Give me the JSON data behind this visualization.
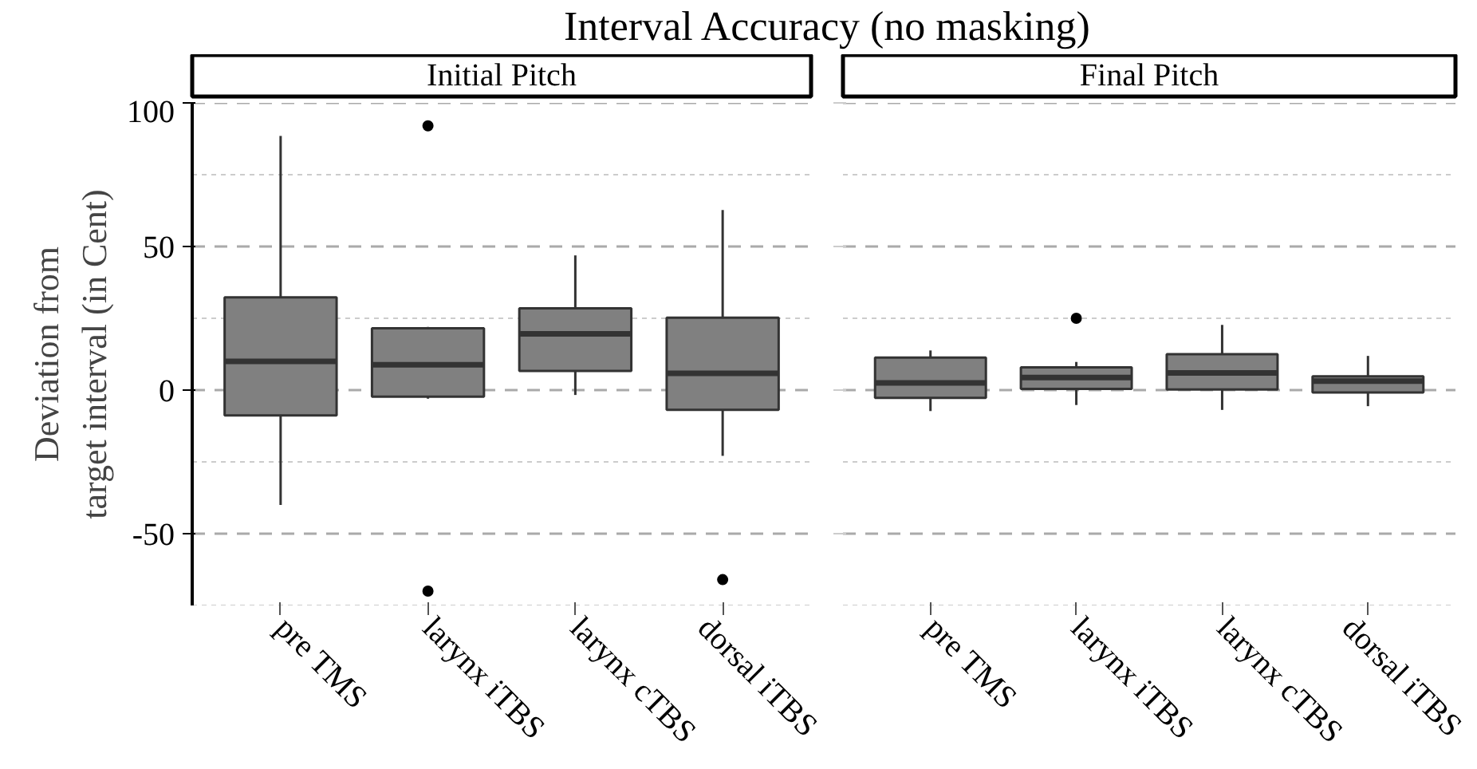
{
  "chart_data": [
    {
      "type": "box",
      "title": "Interval Accuracy (no masking)",
      "subtitle": "Initial Pitch",
      "ylabel": "Deviation from\ntarget interval (in Cent)",
      "categories": [
        "pre TMS",
        "larynx iTBS",
        "larynx cTBS",
        "dorsal iTBS"
      ],
      "series": [
        {
          "color": "#808080",
          "boxes": [
            {
              "low": -40,
              "q1": -8.8,
              "median": 10,
              "q3": 32.3,
              "high": 88.5
            },
            {
              "low": -3,
              "q1": -2.3,
              "median": 8.8,
              "q3": 21.5,
              "high": 22,
              "outliers": [
                92,
                -70
              ]
            },
            {
              "low": -1.7,
              "q1": 6.7,
              "median": 19.6,
              "q3": 28.5,
              "high": 46.9
            },
            {
              "low": -22.9,
              "q1": -6.9,
              "median": 5.8,
              "q3": 25.2,
              "high": 62.7,
              "outliers": [
                -66
              ]
            }
          ]
        }
      ],
      "ylim": [
        -75,
        100
      ],
      "yticks": [
        100,
        {
          "value": 75,
          "label": null
        },
        50,
        {
          "value": 25,
          "label": null
        },
        0,
        {
          "value": -25,
          "label": null
        },
        -50,
        {
          "value": -75,
          "label": null
        }
      ],
      "grid": "y"
    },
    {
      "type": "box",
      "subtitle": "Final Pitch",
      "categories": [
        "pre TMS",
        "larynx iTBS",
        "larynx cTBS",
        "dorsal iTBS"
      ],
      "series": [
        {
          "color": "#808080",
          "boxes": [
            {
              "low": -7.3,
              "q1": -2.7,
              "median": 2.5,
              "q3": 11.3,
              "high": 13.8
            },
            {
              "low": -5.2,
              "q1": 0.4,
              "median": 4.4,
              "q3": 7.9,
              "high": 9.8,
              "outliers": [
                25
              ]
            },
            {
              "low": -6.9,
              "q1": 0.2,
              "median": 6,
              "q3": 12.5,
              "high": 22.7
            },
            {
              "low": -5.6,
              "q1": -0.8,
              "median": 3.1,
              "q3": 4.8,
              "high": 11.9
            }
          ]
        }
      ],
      "ylim": [
        -75,
        100
      ],
      "yticks": [
        100,
        {
          "value": 75,
          "label": null
        },
        50,
        {
          "value": 25,
          "label": null
        },
        0,
        {
          "value": -25,
          "label": null
        },
        -50,
        {
          "value": -75,
          "label": null
        }
      ],
      "grid": "y",
      "tick_labels": "x"
    }
  ]
}
